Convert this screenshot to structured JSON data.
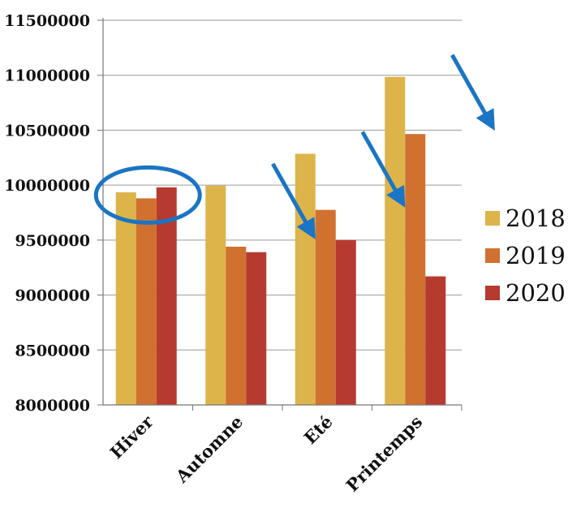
{
  "chart_data": {
    "type": "bar",
    "categories": [
      "Hiver",
      "Automne",
      "Eté",
      "Printemps"
    ],
    "series": [
      {
        "name": "2018",
        "color": "#DDB44A",
        "values": [
          9935000,
          9995000,
          10285000,
          10985000
        ]
      },
      {
        "name": "2019",
        "color": "#D07130",
        "values": [
          9880000,
          9440000,
          9775000,
          10465000
        ]
      },
      {
        "name": "2020",
        "color": "#B73A30",
        "values": [
          9980000,
          9390000,
          9500000,
          9170000
        ]
      }
    ],
    "ylim": [
      8000000,
      11500000
    ],
    "yticks": [
      "8000000",
      "8500000",
      "9000000",
      "9500000",
      "10000000",
      "10500000",
      "11000000",
      "11500000"
    ],
    "grid": true,
    "legend_position": "right",
    "annotations": {
      "highlight_ellipse": {
        "category": "Hiver",
        "color": "#1A75C4"
      },
      "decrease_arrows": {
        "categories": [
          "Automne",
          "Eté",
          "Printemps"
        ],
        "color": "#1A75C4"
      }
    }
  }
}
